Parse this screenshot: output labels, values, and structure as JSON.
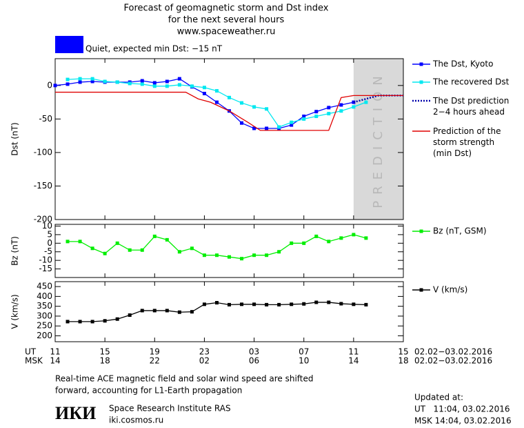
{
  "header": {
    "title": [
      "Forecast of geomagnetic storm and Dst index",
      "for the next several hours",
      "www.spaceweather.ru"
    ],
    "status": {
      "color": "#0000ff",
      "text": "Quiet, expected min Dst: −15 nT"
    }
  },
  "chart_data": [
    {
      "type": "line",
      "ylabel": "Dst (nT)",
      "ylim": [
        -200,
        40
      ],
      "yticks": [
        0,
        -50,
        -100,
        -150,
        -200
      ],
      "prediction_region": {
        "xlim": [
          24,
          28
        ],
        "label": "PREDICTION",
        "color": "#d9d9d9"
      },
      "series": [
        {
          "name": "The Dst, Kyoto",
          "color": "#0000ff",
          "markers": true,
          "x": [
            0,
            1,
            2,
            3,
            4,
            5,
            6,
            7,
            8,
            9,
            10,
            11,
            12,
            13,
            14,
            15,
            16,
            17,
            18,
            19,
            20,
            21,
            22,
            23,
            24
          ],
          "values": [
            0,
            2,
            5,
            6,
            5,
            5,
            5,
            7,
            4,
            6,
            10,
            -2,
            -12,
            -25,
            -38,
            -56,
            -64,
            -64,
            -64,
            -59,
            -46,
            -39,
            -33,
            -29,
            -25
          ]
        },
        {
          "name": "The recovered Dst",
          "color": "#00e8f0",
          "markers": true,
          "x": [
            1,
            2,
            3,
            4,
            5,
            6,
            7,
            8,
            9,
            10,
            11,
            12,
            13,
            14,
            15,
            16,
            17,
            18,
            19,
            20,
            21,
            22,
            23,
            24,
            25
          ],
          "values": [
            9,
            10,
            10,
            6,
            5,
            3,
            2,
            -1,
            -1,
            1,
            -1,
            -3,
            -8,
            -18,
            -26,
            -32,
            -35,
            -62,
            -55,
            -50,
            -46,
            -42,
            -38,
            -32,
            -25
          ]
        },
        {
          "name": "The Dst prediction\n2−4 hours ahead",
          "color": "#0000aa",
          "dotted": true,
          "x": [
            24,
            25,
            26,
            28
          ],
          "values": [
            -25,
            -20,
            -15,
            -15
          ]
        },
        {
          "name": "Prediction of the\nstorm strength\n(min Dst)",
          "color": "#e00000",
          "x": [
            0,
            10.5,
            11.5,
            12.5,
            14,
            15.5,
            16.5,
            22,
            23,
            24,
            28
          ],
          "values": [
            -10,
            -10,
            -20,
            -25,
            -38,
            -55,
            -67,
            -67,
            -18,
            -15,
            -15
          ]
        }
      ]
    },
    {
      "type": "line",
      "ylabel": "Bz (nT)",
      "ylim": [
        -20,
        11
      ],
      "yticks": [
        10,
        5,
        0,
        -5,
        -10,
        -15
      ],
      "series": [
        {
          "name": "Bz (nT, GSM)",
          "color": "#00ee00",
          "markers": true,
          "x": [
            1,
            2,
            3,
            4,
            5,
            6,
            7,
            8,
            9,
            10,
            11,
            12,
            13,
            14,
            15,
            16,
            17,
            18,
            19,
            20,
            21,
            22,
            23,
            24,
            25
          ],
          "values": [
            1,
            1,
            -3,
            -6,
            0,
            -4,
            -4,
            4,
            2,
            -5,
            -3,
            -7,
            -7,
            -8,
            -9,
            -7,
            -7,
            -5,
            0,
            0,
            4,
            1,
            3,
            5,
            3
          ]
        }
      ]
    },
    {
      "type": "line",
      "ylabel": "V (km/s)",
      "ylim": [
        170,
        475
      ],
      "yticks": [
        450,
        400,
        350,
        300,
        250,
        200
      ],
      "xlim": [
        0,
        28
      ],
      "xticks": [
        {
          "value": 0,
          "label": "11"
        },
        {
          "value": 4,
          "label": "15"
        },
        {
          "value": 8,
          "label": "19"
        },
        {
          "value": 12,
          "label": "23"
        },
        {
          "value": 16,
          "label": "03"
        },
        {
          "value": 20,
          "label": "07"
        },
        {
          "value": 24,
          "label": "11"
        },
        {
          "value": 28,
          "label": "15"
        }
      ],
      "xticks_msk": [
        "14",
        "18",
        "22",
        "02",
        "06",
        "10",
        "14",
        "18"
      ],
      "xrow_ut": "UT",
      "xrow_msk": "MSK",
      "date_range_ut": "02.02−03.02.2016",
      "date_range_msk": "02.02−03.02.2016",
      "series": [
        {
          "name": "V (km/s)",
          "color": "#000000",
          "markers": true,
          "x": [
            1,
            2,
            3,
            4,
            5,
            6,
            7,
            8,
            9,
            10,
            11,
            12,
            13,
            14,
            15,
            16,
            17,
            18,
            19,
            20,
            21,
            22,
            23,
            24,
            25
          ],
          "values": [
            272,
            272,
            272,
            276,
            285,
            305,
            328,
            328,
            328,
            320,
            322,
            360,
            368,
            358,
            360,
            360,
            358,
            358,
            360,
            362,
            370,
            370,
            363,
            360,
            358
          ]
        }
      ]
    }
  ],
  "footer": {
    "note": [
      "Real-time ACE magnetic field and solar wind speed are shifted",
      "forward, accounting for L1-Earth propagation"
    ],
    "logo": "ИКИ",
    "institute": "Space Research Institute RAS",
    "site": "iki.cosmos.ru",
    "updated": [
      "Updated at:",
      "UT   11:04, 03.02.2016",
      "MSK 14:04, 03.02.2016"
    ]
  }
}
